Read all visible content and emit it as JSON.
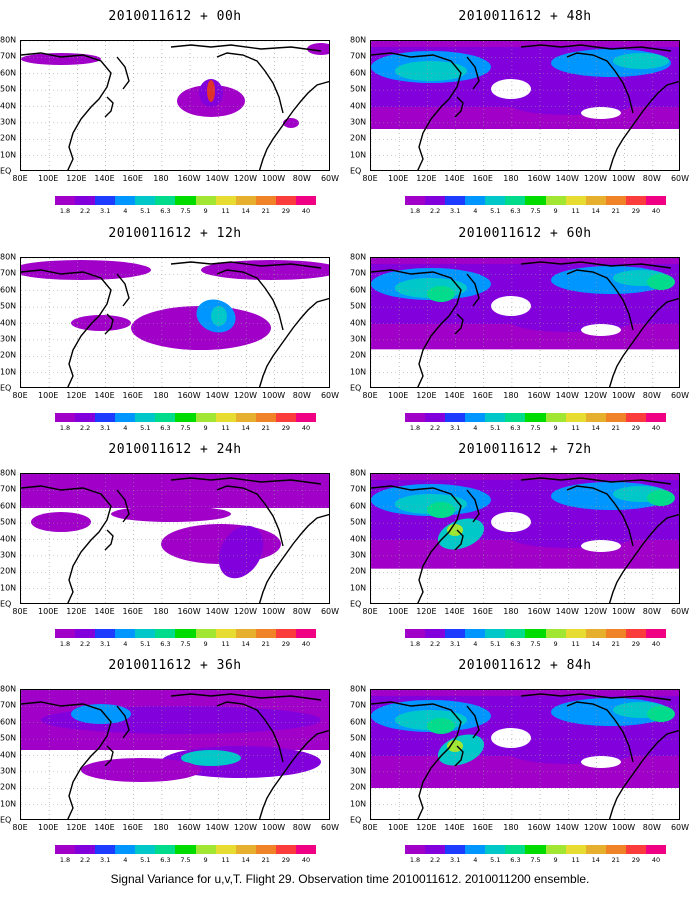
{
  "caption": "Signal Variance for u,v,T. Flight 29. Observation time 2010011612. 2010011200 ensemble.",
  "panel_titles": {
    "p00": "2010011612 + 00h",
    "p12": "2010011612 + 12h",
    "p24": "2010011612 + 24h",
    "p36": "2010011612 + 36h",
    "p48": "2010011612 + 48h",
    "p60": "2010011612 + 60h",
    "p72": "2010011612 + 72h",
    "p84": "2010011612 + 84h"
  },
  "lat_labels": [
    "80N",
    "70N",
    "60N",
    "50N",
    "40N",
    "30N",
    "20N",
    "10N",
    "EQ"
  ],
  "lon_labels": [
    "80E",
    "100E",
    "120E",
    "140E",
    "160E",
    "180",
    "160W",
    "140W",
    "120W",
    "100W",
    "80W",
    "60W"
  ],
  "colorbar": {
    "labels": [
      "1.8",
      "2.2",
      "3.1",
      "4",
      "5.1",
      "6.3",
      "7.5",
      "9",
      "11",
      "14",
      "21",
      "29",
      "40"
    ],
    "colors": [
      "#a000c8",
      "#8200dc",
      "#1e3cff",
      "#0096ff",
      "#00c8c8",
      "#00dc8c",
      "#00dc00",
      "#a0e632",
      "#e6dc32",
      "#e6af2d",
      "#f08228",
      "#fa3c3c",
      "#f00082"
    ]
  },
  "chart_data": {
    "type": "heatmap",
    "variable": "Signal Variance for u,v,T",
    "colorbar_levels": [
      1.8,
      2.2,
      3.1,
      4,
      5.1,
      6.3,
      7.5,
      9,
      11,
      14,
      21,
      29,
      40
    ],
    "lat_range": [
      "EQ",
      "80N"
    ],
    "lon_range": [
      "80E",
      "60W"
    ],
    "grid": "dotted",
    "panels": [
      {
        "title": "2010011612 + 00h",
        "lead_hours": 0
      },
      {
        "title": "2010011612 + 12h",
        "lead_hours": 12
      },
      {
        "title": "2010011612 + 24h",
        "lead_hours": 24
      },
      {
        "title": "2010011612 + 36h",
        "lead_hours": 36
      },
      {
        "title": "2010011612 + 48h",
        "lead_hours": 48
      },
      {
        "title": "2010011612 + 60h",
        "lead_hours": 60
      },
      {
        "title": "2010011612 + 72h",
        "lead_hours": 72
      },
      {
        "title": "2010011612 + 84h",
        "lead_hours": 84
      }
    ]
  }
}
